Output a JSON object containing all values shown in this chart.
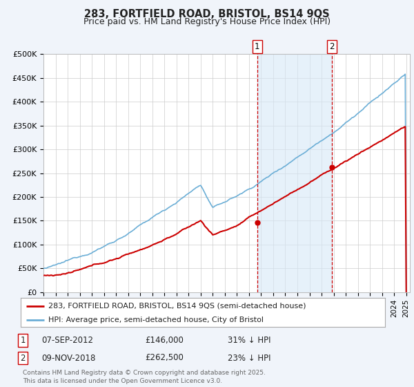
{
  "title": "283, FORTFIELD ROAD, BRISTOL, BS14 9QS",
  "subtitle": "Price paid vs. HM Land Registry's House Price Index (HPI)",
  "ylabel_ticks": [
    "£0",
    "£50K",
    "£100K",
    "£150K",
    "£200K",
    "£250K",
    "£300K",
    "£350K",
    "£400K",
    "£450K",
    "£500K"
  ],
  "ytick_values": [
    0,
    50000,
    100000,
    150000,
    200000,
    250000,
    300000,
    350000,
    400000,
    450000,
    500000
  ],
  "ylim": [
    0,
    500000
  ],
  "hpi_color": "#6baed6",
  "hpi_fill_color": "#d6e8f7",
  "price_color": "#cc0000",
  "marker1_year": 2012.68,
  "marker2_year": 2018.86,
  "marker1_price": 146000,
  "marker2_price": 262500,
  "legend_label1": "283, FORTFIELD ROAD, BRISTOL, BS14 9QS (semi-detached house)",
  "legend_label2": "HPI: Average price, semi-detached house, City of Bristol",
  "footer": "Contains HM Land Registry data © Crown copyright and database right 2025.\nThis data is licensed under the Open Government Licence v3.0.",
  "annotation1_date": "07-SEP-2012",
  "annotation1_price": "£146,000",
  "annotation1_hpi": "31% ↓ HPI",
  "annotation2_date": "09-NOV-2018",
  "annotation2_price": "£262,500",
  "annotation2_hpi": "23% ↓ HPI",
  "background_color": "#f0f4fa",
  "plot_bg_color": "#ffffff",
  "xstart": 1995,
  "xend": 2025
}
